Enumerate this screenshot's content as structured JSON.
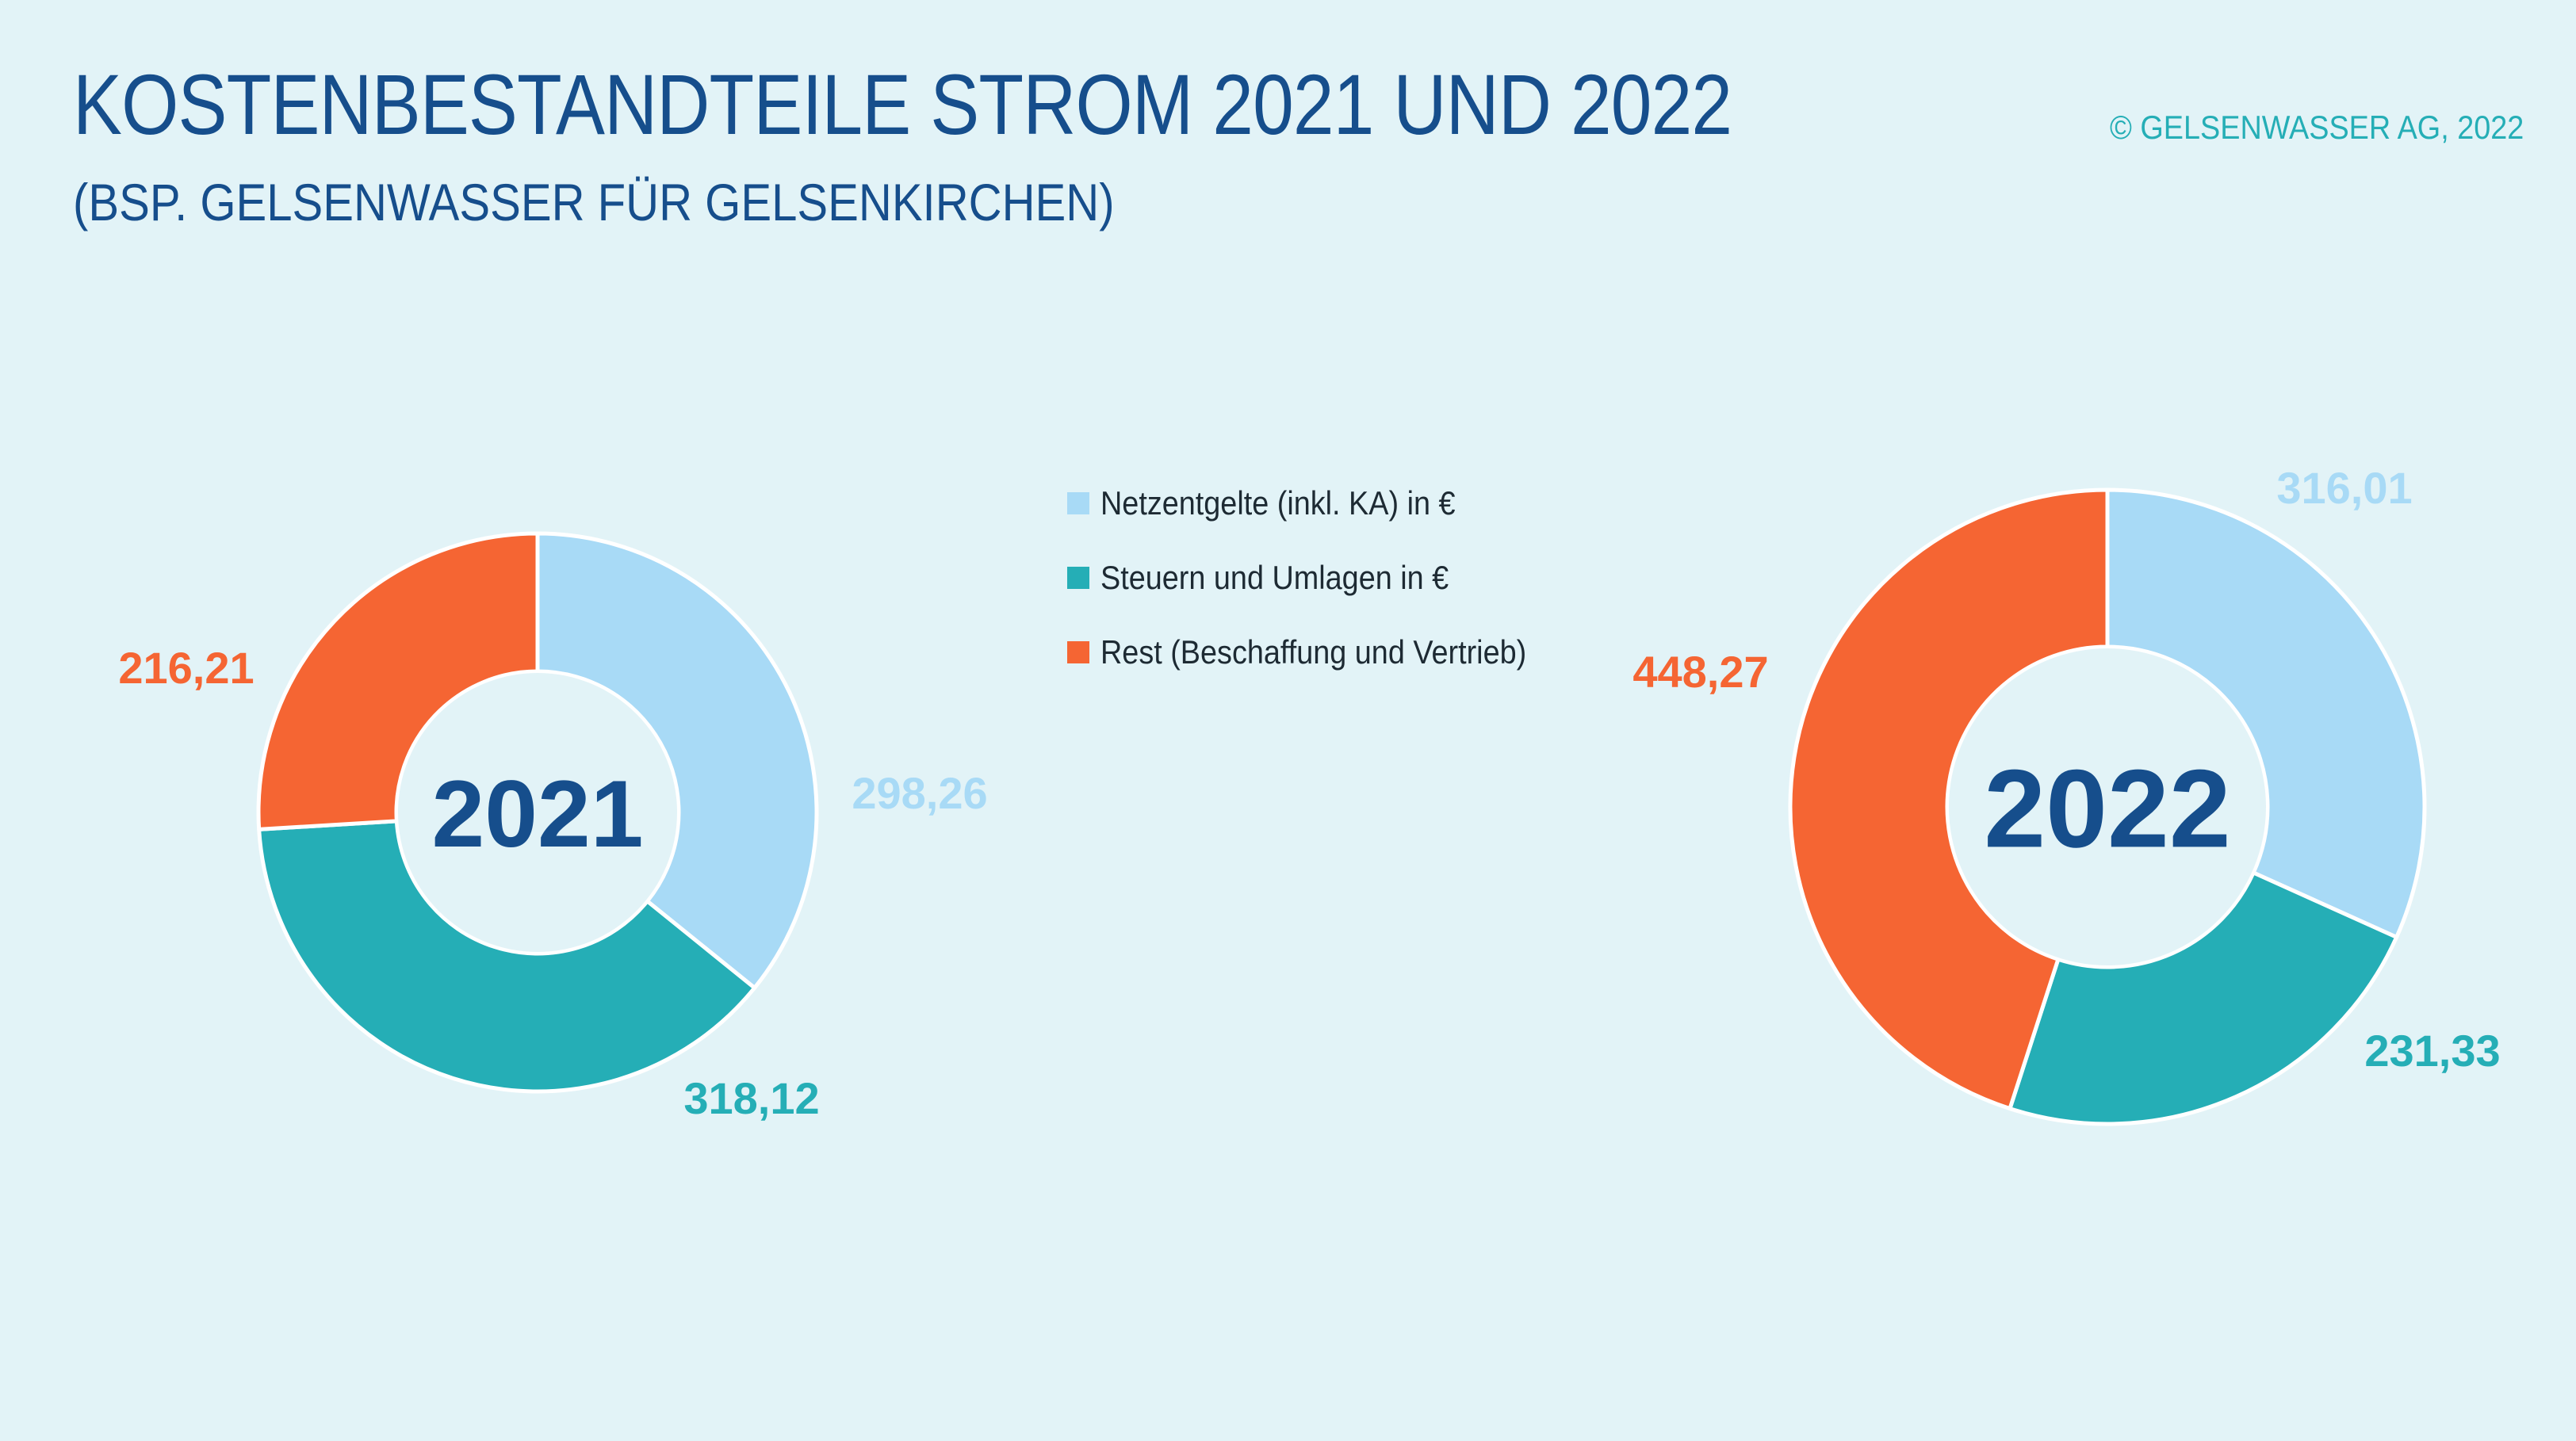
{
  "title": "KOSTENBESTANDTEILE STROM 2021 UND 2022",
  "subtitle": "(BSP. GELSENWASSER FÜR GELSENKIRCHEN)",
  "copyright": "© GELSENWASSER AG, 2022",
  "legend": [
    {
      "label": "Netzentgelte (inkl. KA) in €",
      "color": "#a8daf6"
    },
    {
      "label": "Steuern und Umlagen in €",
      "color": "#25aeb6"
    },
    {
      "label": "Rest (Beschaffung und Vertrieb)",
      "color": "#f56533"
    }
  ],
  "chart_data": [
    {
      "type": "pie",
      "style": "donut",
      "center_label": "2021",
      "categories": [
        "Netzentgelte (inkl. KA) in €",
        "Steuern und Umlagen in €",
        "Rest (Beschaffung und Vertrieb)"
      ],
      "values": [
        298.26,
        318.12,
        216.21
      ],
      "value_labels": [
        "298,26",
        "318,12",
        "216,21"
      ],
      "colors": [
        "#a8daf6",
        "#25aeb6",
        "#f56533"
      ]
    },
    {
      "type": "pie",
      "style": "donut",
      "center_label": "2022",
      "categories": [
        "Netzentgelte (inkl. KA) in €",
        "Steuern und Umlagen in €",
        "Rest (Beschaffung und Vertrieb)"
      ],
      "values": [
        316.01,
        231.33,
        448.27
      ],
      "value_labels": [
        "316,01",
        "231,33",
        "448,27"
      ],
      "colors": [
        "#a8daf6",
        "#25aeb6",
        "#f56533"
      ]
    }
  ]
}
